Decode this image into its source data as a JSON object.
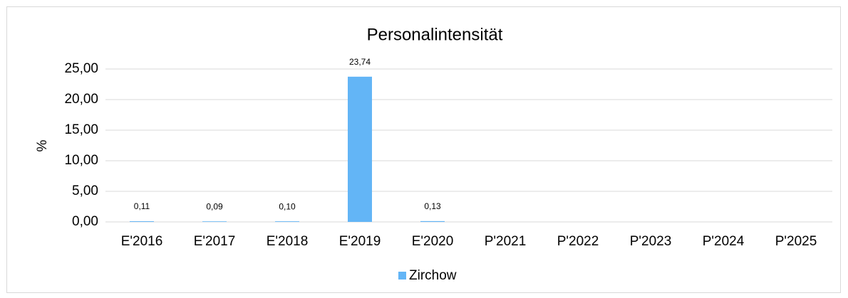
{
  "chart_data": {
    "type": "bar",
    "title": "Personalintensität",
    "y_label": "%",
    "categories": [
      "E'2016",
      "E'2017",
      "E'2018",
      "E'2019",
      "E'2020",
      "P'2021",
      "P'2022",
      "P'2023",
      "P'2024",
      "P'2025"
    ],
    "series": [
      {
        "name": "Zirchow",
        "color": "#63b5f6",
        "values": [
          0.11,
          0.09,
          0.1,
          23.74,
          0.13,
          null,
          null,
          null,
          null,
          null
        ],
        "value_labels": [
          "0,11",
          "0,09",
          "0,10",
          "23,74",
          "0,13",
          null,
          null,
          null,
          null,
          null
        ]
      }
    ],
    "ylim": [
      0,
      25
    ],
    "yticks": [
      {
        "value": 0,
        "label": "0,00"
      },
      {
        "value": 5,
        "label": "5,00"
      },
      {
        "value": 10,
        "label": "10,00"
      },
      {
        "value": 15,
        "label": "15,00"
      },
      {
        "value": 20,
        "label": "20,00"
      },
      {
        "value": 25,
        "label": "25,00"
      }
    ],
    "grid": true,
    "legend": "bottom"
  }
}
